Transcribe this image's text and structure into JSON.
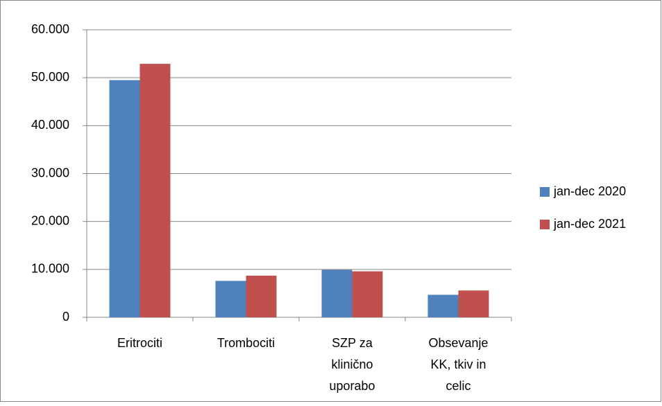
{
  "chart_data": {
    "type": "bar",
    "categories": [
      "Eritrociti",
      "Trombociti",
      "SZP za klinično uporabo",
      "Obsevanje KK, tkiv in celic"
    ],
    "series": [
      {
        "name": "jan-dec 2020",
        "color": "#4f81bd",
        "values": [
          49500,
          7600,
          9900,
          4700
        ]
      },
      {
        "name": "jan-dec 2021",
        "color": "#c0504d",
        "values": [
          52900,
          8700,
          9600,
          5600
        ]
      }
    ],
    "ylim": [
      0,
      60000
    ],
    "yticks": [
      0,
      {
        "value": 10000,
        "label": "10.000"
      },
      {
        "value": 20000,
        "label": "20.000"
      },
      {
        "value": 30000,
        "label": "30.000"
      },
      {
        "value": 40000,
        "label": "40.000"
      },
      {
        "value": 50000,
        "label": "50.000"
      },
      {
        "value": 60000,
        "label": "60.000"
      }
    ],
    "grid": true,
    "legend": "right"
  }
}
